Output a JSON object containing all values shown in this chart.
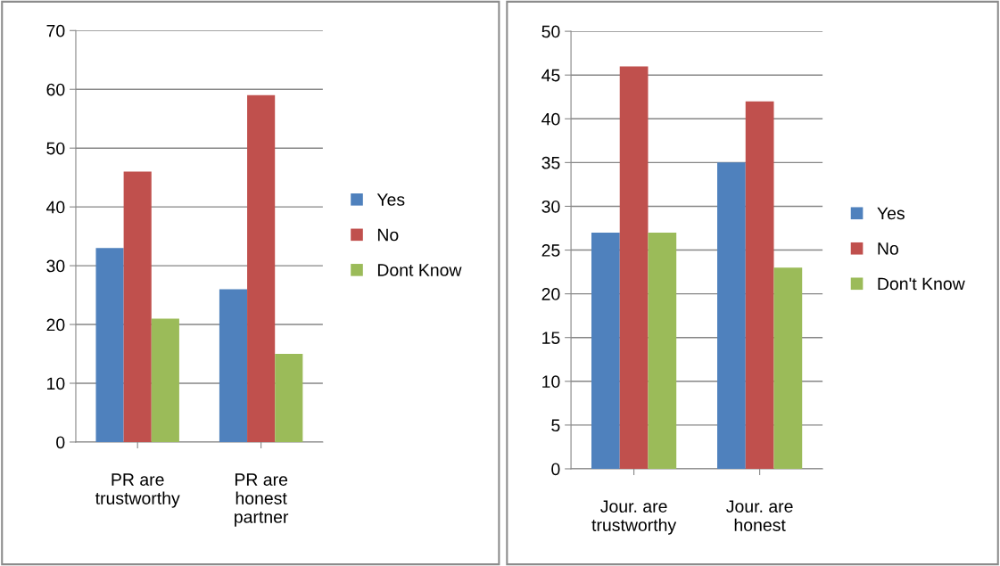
{
  "chart_data": [
    {
      "type": "bar",
      "categories": [
        "PR are\ntrustworthy",
        "PR are\nhonest\npartner"
      ],
      "ylim": [
        0,
        70
      ],
      "yticks": [
        0,
        10,
        20,
        30,
        40,
        50,
        60,
        70
      ],
      "grid": "y",
      "legend": "right",
      "series": [
        {
          "name": "Yes",
          "color": "#4f81bd",
          "values": [
            33,
            26
          ]
        },
        {
          "name": "No",
          "color": "#c0504d",
          "values": [
            46,
            59
          ]
        },
        {
          "name": "Dont Know",
          "color": "#9bbb59",
          "values": [
            21,
            15
          ]
        }
      ]
    },
    {
      "type": "bar",
      "categories": [
        "Jour. are\ntrustworthy",
        "Jour. are\nhonest"
      ],
      "ylim": [
        0,
        50
      ],
      "yticks": [
        0,
        5,
        10,
        15,
        20,
        25,
        30,
        35,
        40,
        45,
        50
      ],
      "grid": "y",
      "legend": "right",
      "series": [
        {
          "name": "Yes",
          "color": "#4f81bd",
          "values": [
            27,
            35
          ]
        },
        {
          "name": "No",
          "color": "#c0504d",
          "values": [
            46,
            42
          ]
        },
        {
          "name": "Don't Know",
          "color": "#9bbb59",
          "values": [
            27,
            23
          ]
        }
      ]
    }
  ]
}
